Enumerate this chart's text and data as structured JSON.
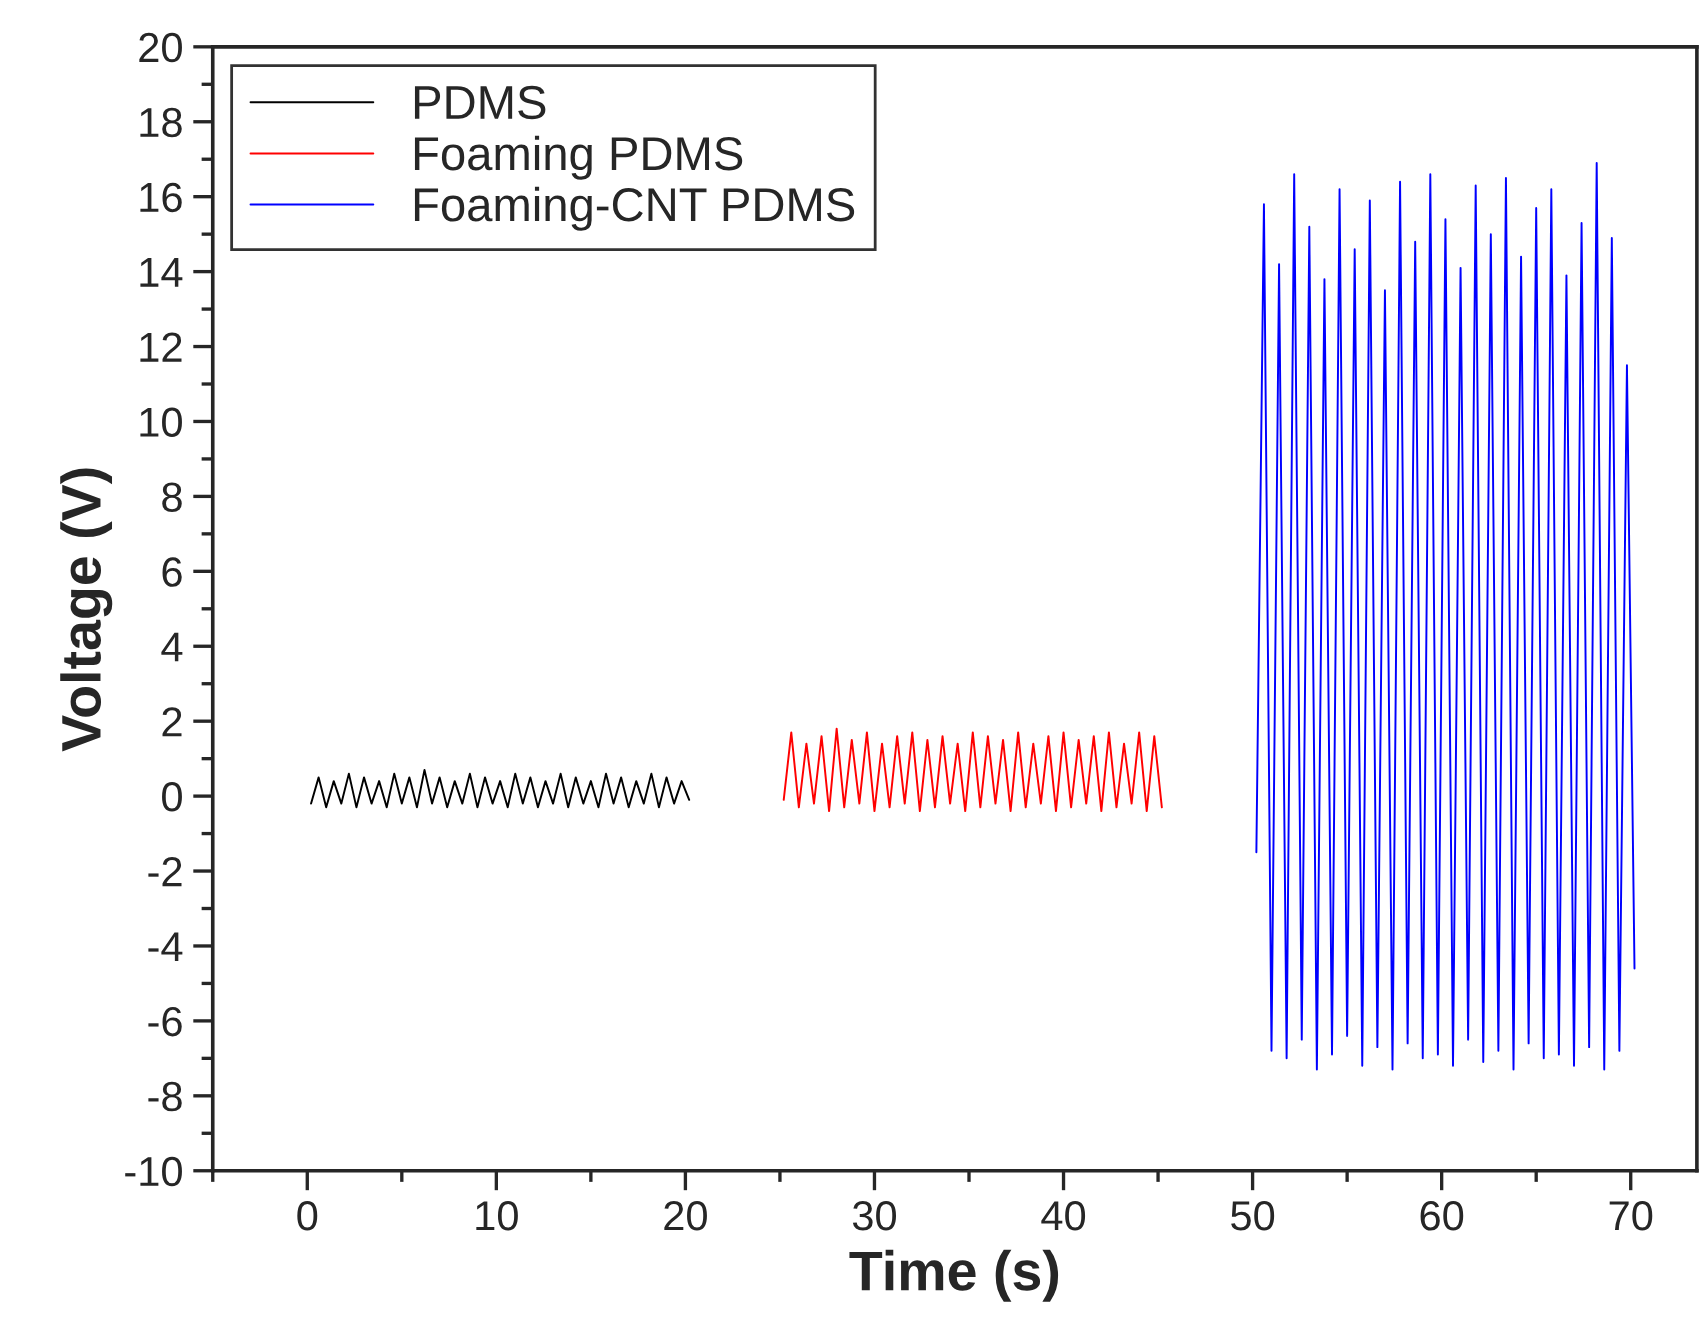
{
  "chart_data": {
    "type": "line",
    "xlabel": "Time (s)",
    "ylabel": "Voltage (V)",
    "xlim": [
      -5,
      73.5
    ],
    "xticks": [
      0,
      10,
      20,
      30,
      40,
      50,
      60,
      70
    ],
    "ylim": [
      -10,
      20
    ],
    "yticks": [
      -10,
      -8,
      -6,
      -4,
      -2,
      0,
      2,
      4,
      6,
      8,
      10,
      12,
      14,
      16,
      18,
      20
    ],
    "grid": false,
    "legend": "top left",
    "marker": "none",
    "line_style": "solid",
    "series": [
      {
        "name": "PDMS",
        "color": "#000000",
        "x": [
          0.2,
          0.6,
          1,
          1.4,
          1.8,
          2.2,
          2.6,
          3,
          3.4,
          3.8,
          4.2,
          4.6,
          5,
          5.4,
          5.8,
          6.2,
          6.6,
          7,
          7.4,
          7.8,
          8.2,
          8.6,
          9,
          9.4,
          9.8,
          10.2,
          10.6,
          11,
          11.4,
          11.8,
          12.2,
          12.6,
          13,
          13.4,
          13.8,
          14.2,
          14.6,
          15,
          15.4,
          15.8,
          16.2,
          16.6,
          17,
          17.4,
          17.8,
          18.2,
          18.6,
          19,
          19.4,
          19.8,
          20.2
        ],
        "values": [
          -0.2,
          0.5,
          -0.3,
          0.4,
          -0.2,
          0.6,
          -0.3,
          0.5,
          -0.2,
          0.4,
          -0.3,
          0.6,
          -0.2,
          0.5,
          -0.3,
          0.7,
          -0.2,
          0.5,
          -0.3,
          0.4,
          -0.2,
          0.6,
          -0.3,
          0.5,
          -0.2,
          0.4,
          -0.3,
          0.6,
          -0.2,
          0.5,
          -0.3,
          0.4,
          -0.2,
          0.6,
          -0.3,
          0.5,
          -0.2,
          0.4,
          -0.3,
          0.6,
          -0.2,
          0.5,
          -0.3,
          0.4,
          -0.2,
          0.6,
          -0.3,
          0.5,
          -0.2,
          0.4,
          -0.1
        ]
      },
      {
        "name": "Foaming PDMS",
        "color": "#ff0000",
        "x": [
          25.2,
          25.6,
          26,
          26.4,
          26.8,
          27.2,
          27.6,
          28,
          28.4,
          28.8,
          29.2,
          29.6,
          30,
          30.4,
          30.8,
          31.2,
          31.6,
          32,
          32.4,
          32.8,
          33.2,
          33.6,
          34,
          34.4,
          34.8,
          35.2,
          35.6,
          36,
          36.4,
          36.8,
          37.2,
          37.6,
          38,
          38.4,
          38.8,
          39.2,
          39.6,
          40,
          40.4,
          40.8,
          41.2,
          41.6,
          42,
          42.4,
          42.8,
          43.2,
          43.6,
          44,
          44.4,
          44.8,
          45.2
        ],
        "values": [
          -0.1,
          1.7,
          -0.3,
          1.4,
          -0.2,
          1.6,
          -0.4,
          1.8,
          -0.3,
          1.5,
          -0.2,
          1.7,
          -0.4,
          1.4,
          -0.3,
          1.6,
          -0.2,
          1.7,
          -0.4,
          1.5,
          -0.3,
          1.6,
          -0.2,
          1.4,
          -0.4,
          1.7,
          -0.3,
          1.6,
          -0.2,
          1.5,
          -0.4,
          1.7,
          -0.3,
          1.4,
          -0.2,
          1.6,
          -0.4,
          1.7,
          -0.3,
          1.5,
          -0.2,
          1.6,
          -0.4,
          1.7,
          -0.3,
          1.4,
          -0.2,
          1.7,
          -0.4,
          1.6,
          -0.3
        ]
      },
      {
        "name": "Foaming-CNT PDMS",
        "color": "#0000ff",
        "x": [
          50.2,
          50.6,
          51,
          51.4,
          51.8,
          52.2,
          52.6,
          53,
          53.4,
          53.8,
          54.2,
          54.6,
          55,
          55.4,
          55.8,
          56.2,
          56.6,
          57,
          57.4,
          57.8,
          58.2,
          58.6,
          59,
          59.4,
          59.8,
          60.2,
          60.6,
          61,
          61.4,
          61.8,
          62.2,
          62.6,
          63,
          63.4,
          63.8,
          64.2,
          64.6,
          65,
          65.4,
          65.8,
          66.2,
          66.6,
          67,
          67.4,
          67.8,
          68.2,
          68.6,
          69,
          69.4,
          69.8,
          70.2
        ],
        "values": [
          -1.5,
          15.8,
          -6.8,
          14.2,
          -7,
          16.6,
          -6.5,
          15.2,
          -7.3,
          13.8,
          -6.9,
          16.2,
          -6.4,
          14.6,
          -7.2,
          15.9,
          -6.7,
          13.5,
          -7.3,
          16.4,
          -6.6,
          14.8,
          -7,
          16.6,
          -6.9,
          15.4,
          -7.2,
          14.1,
          -6.5,
          16.3,
          -7.1,
          15,
          -6.8,
          16.5,
          -7.3,
          14.4,
          -6.6,
          15.7,
          -7,
          16.2,
          -6.9,
          13.9,
          -7.2,
          15.3,
          -6.7,
          16.9,
          -7.3,
          14.9,
          -6.8,
          11.5,
          -4.6
        ]
      }
    ]
  }
}
